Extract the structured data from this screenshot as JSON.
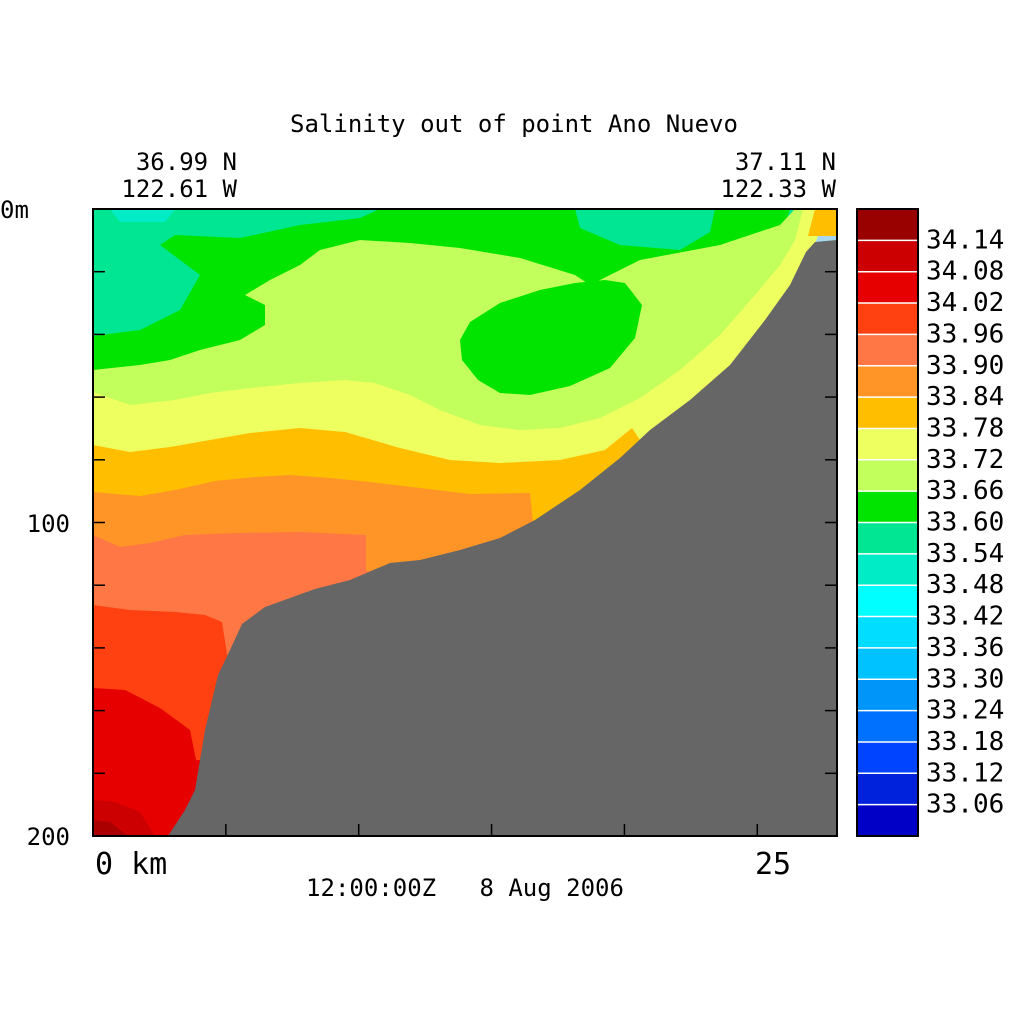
{
  "title": "Salinity out of point Ano Nuevo",
  "corner_left": {
    "lat": "36.99 N",
    "lon": "122.61 W"
  },
  "corner_right": {
    "lat": "37.11 N",
    "lon": "122.33 W"
  },
  "timestamp": "12:00:00Z   8 Aug 2006",
  "chart_data": {
    "type": "heatmap",
    "title": "Salinity out of point Ano Nuevo",
    "xlabel": "",
    "ylabel": "",
    "x_tick_labels": [
      "0 km",
      "25"
    ],
    "y_tick_labels": [
      "0m",
      "100",
      "200"
    ],
    "xlim": [
      0,
      28
    ],
    "ylim_depth_m": [
      0,
      200
    ],
    "y_inverted": true,
    "grid": false,
    "legend": "colorbar right",
    "colorbar": {
      "levels": [
        "34.14",
        "34.08",
        "34.02",
        "33.96",
        "33.90",
        "33.84",
        "33.78",
        "33.72",
        "33.66",
        "33.60",
        "33.54",
        "33.48",
        "33.42",
        "33.36",
        "33.30",
        "33.24",
        "33.18",
        "33.12",
        "33.06"
      ],
      "colors": [
        "#990000",
        "#cc0000",
        "#e60000",
        "#ff4010",
        "#ff7744",
        "#ff9527",
        "#ffbe00",
        "#eeff60",
        "#c2ff5c",
        "#00e400",
        "#00e693",
        "#00ecc6",
        "#00ffff",
        "#00ddff",
        "#00c2ff",
        "#0095f8",
        "#0070ff",
        "#0044ff",
        "#0022dd",
        "#0000c6"
      ]
    },
    "bathymetry_color": "#666666",
    "bathymetry_profile_km_m": [
      [
        2.8,
        200
      ],
      [
        3.8,
        180
      ],
      [
        4.7,
        140
      ],
      [
        5.5,
        125
      ],
      [
        7.2,
        118
      ],
      [
        10.7,
        108
      ],
      [
        11.5,
        106
      ],
      [
        16.5,
        100
      ],
      [
        20.5,
        76
      ],
      [
        24.6,
        42
      ],
      [
        27.8,
        10
      ],
      [
        28,
        10
      ]
    ],
    "salinity_bands": [
      {
        "value": "34.14",
        "region": "bottom-left corner near 190-200 m"
      },
      {
        "value": "34.08",
        "region": "150-200 m at 0-4 km"
      },
      {
        "value": "34.02",
        "region": "125-165 m at 0-5 km"
      },
      {
        "value": "33.96",
        "region": "100-140 m at 0-10 km"
      },
      {
        "value": "33.90",
        "region": "90-115 m at 0-16 km"
      },
      {
        "value": "33.84",
        "region": "75-100 m at 0-20 km"
      },
      {
        "value": "33.78",
        "region": "55-85 m across shelf"
      },
      {
        "value": "33.72",
        "region": "15-60 m, shallowing shoreward"
      },
      {
        "value": "33.66",
        "region": "surface wedge and mid-water"
      },
      {
        "value": "33.60",
        "region": "10-50 m mid-section and core"
      },
      {
        "value": "33.54",
        "region": "surface at 0-4 km and 15-23 km"
      },
      {
        "value": "33.48",
        "region": "surface near 1-3 km"
      }
    ]
  }
}
